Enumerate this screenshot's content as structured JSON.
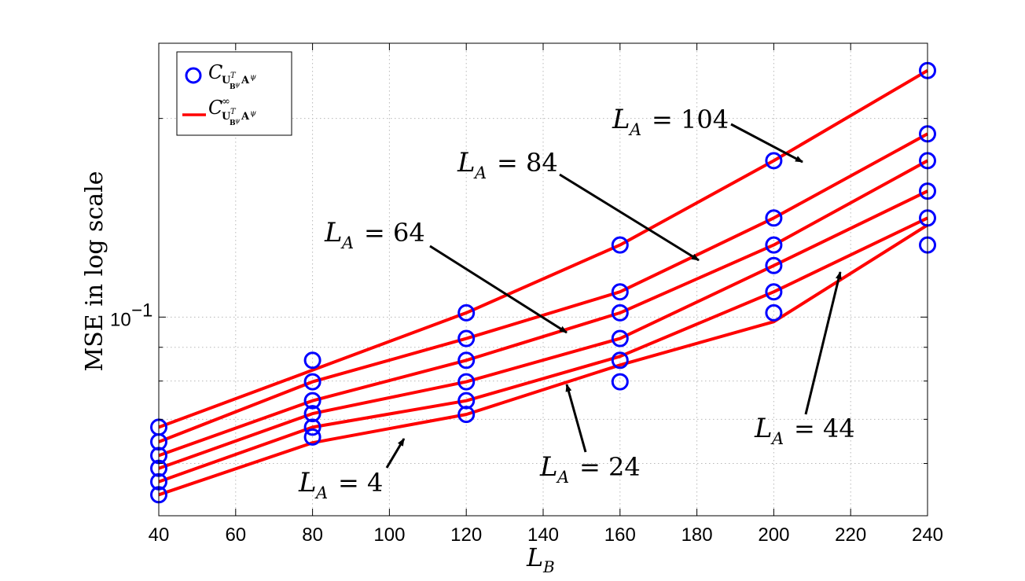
{
  "chart_data": {
    "type": "line",
    "xlabel": "L_B",
    "ylabel": "MSE in log scale",
    "y_scale": "log",
    "xlim": [
      40,
      240
    ],
    "ylim": [
      0.05,
      0.26
    ],
    "x_ticks": [
      40,
      60,
      80,
      100,
      120,
      140,
      160,
      180,
      200,
      220,
      240
    ],
    "y_tick_label": "10^{-1}",
    "grid": true,
    "legend_position": "top-left",
    "legend": [
      {
        "label": "C_{U_{B^ψ}^T A^ψ}",
        "marker": "circle",
        "color": "#0000ff"
      },
      {
        "label": "C^∞_{U_{B^ψ}^T A^ψ}",
        "marker": "line",
        "color": "#ff0000"
      }
    ],
    "series": [
      {
        "annotation": "L_A = 4",
        "x": [
          40,
          80,
          120,
          160,
          200,
          240
        ],
        "circles": [
          0.0538,
          0.0658,
          0.0712,
          0.0798,
          0.1015,
          0.1286
        ],
        "curve": [
          0.0538,
          0.0645,
          0.0712,
          0.0846,
          0.0984,
          0.1379
        ]
      },
      {
        "annotation": "L_A = 24",
        "x": [
          40,
          80,
          120,
          160,
          200,
          240
        ],
        "circles": [
          0.0563,
          0.0681,
          0.0747,
          0.086,
          0.1092,
          0.1413
        ],
        "curve": [
          0.0563,
          0.0681,
          0.0747,
          0.0872,
          0.1092,
          0.1413
        ]
      },
      {
        "annotation": "L_A = 44",
        "x": [
          40,
          80,
          120,
          160,
          200,
          240
        ],
        "circles": [
          0.059,
          0.0714,
          0.0798,
          0.0928,
          0.1197,
          0.1552
        ]
      },
      {
        "annotation": "L_A = 64",
        "x": [
          40,
          80,
          120,
          160,
          200,
          240
        ],
        "circles": [
          0.0617,
          0.0747,
          0.086,
          0.1015,
          0.1286,
          0.1726
        ],
        "curve": [
          0.0617,
          0.0747,
          0.086,
          0.1015,
          0.1286,
          0.1726
        ]
      },
      {
        "annotation": "L_A = 84",
        "x": [
          40,
          80,
          120,
          160,
          200,
          240
        ],
        "circles": [
          0.0647,
          0.0798,
          0.0928,
          0.1092,
          0.1413,
          0.1895
        ],
        "curve": [
          0.0647,
          0.0798,
          0.0928,
          0.1092,
          0.1413,
          0.1895
        ]
      },
      {
        "annotation": "L_A = 104",
        "x": [
          40,
          80,
          120,
          160,
          200,
          240
        ],
        "circles": [
          0.0681,
          0.086,
          0.1015,
          0.1286,
          0.1726,
          0.2364
        ],
        "curve": [
          0.0681,
          0.0831,
          0.1015,
          0.1286,
          0.1726,
          0.2364
        ]
      }
    ],
    "annotations": [
      {
        "label": "L_A = 4",
        "series": 0
      },
      {
        "label": "L_A = 24",
        "series": 1
      },
      {
        "label": "L_A = 44",
        "series": 2
      },
      {
        "label": "L_A = 64",
        "series": 3
      },
      {
        "label": "L_A = 84",
        "series": 4
      },
      {
        "label": "L_A = 104",
        "series": 5
      }
    ],
    "colors": {
      "circles": "#0000ff",
      "curves": "#ff0000"
    }
  }
}
